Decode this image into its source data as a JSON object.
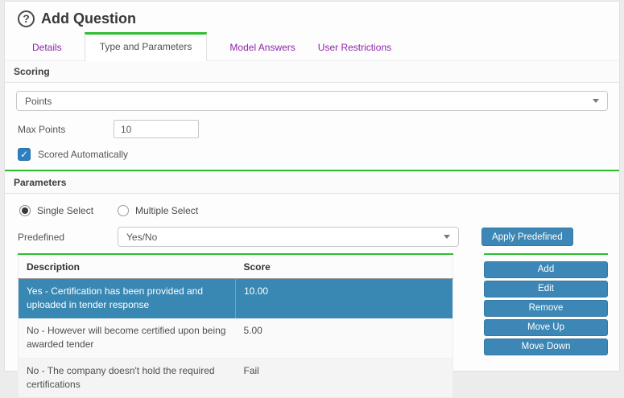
{
  "header": {
    "help_icon": "?",
    "title": "Add Question"
  },
  "tabs": [
    {
      "label": "Details"
    },
    {
      "label": "Type and Parameters"
    },
    {
      "label": "Model Answers"
    },
    {
      "label": "User Restrictions"
    }
  ],
  "scoring": {
    "section_title": "Scoring",
    "type_select": {
      "value": "Points"
    },
    "max_points": {
      "label": "Max Points",
      "value": "10"
    },
    "scored_automatically": {
      "label": "Scored Automatically",
      "checked": true
    }
  },
  "parameters": {
    "section_title": "Parameters",
    "select_mode": {
      "single_label": "Single Select",
      "multiple_label": "Multiple Select",
      "selected": "single"
    },
    "predefined": {
      "label": "Predefined",
      "value": "Yes/No",
      "apply_button": "Apply Predefined"
    },
    "table": {
      "columns": {
        "description": "Description",
        "score": "Score"
      },
      "rows": [
        {
          "description": "Yes - Certification has been provided and uploaded in tender response",
          "score": "10.00",
          "selected": true
        },
        {
          "description": "No - However will become certified upon being awarded tender",
          "score": "5.00",
          "selected": false
        },
        {
          "description": "No - The company doesn't hold the required certifications",
          "score": "Fail",
          "selected": false
        }
      ]
    },
    "actions": [
      "Add",
      "Edit",
      "Remove",
      "Move Up",
      "Move Down"
    ]
  },
  "colors": {
    "accent_green": "#2ebe2e",
    "tab_purple": "#8e24aa",
    "button_blue": "#3c87b5",
    "selected_row_blue": "#3987b3",
    "checkbox_blue": "#2e7fc2"
  }
}
